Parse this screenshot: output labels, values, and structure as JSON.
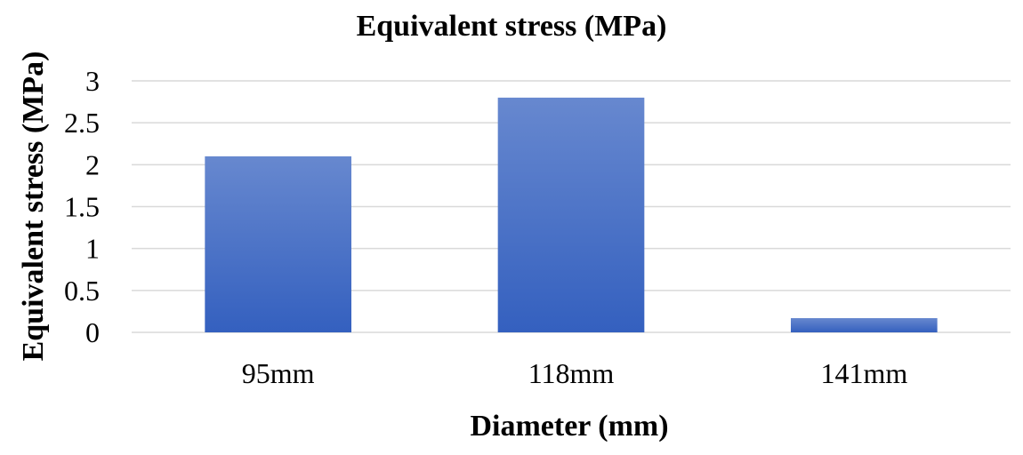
{
  "chart_data": {
    "type": "bar",
    "title": "Equivalent stress (MPa)",
    "xlabel": "Diameter (mm)",
    "ylabel": "Equivalent stress (MPa)",
    "categories": [
      "95mm",
      "118mm",
      "141mm"
    ],
    "values": [
      2.1,
      2.8,
      0.17
    ],
    "ylim": [
      0,
      3
    ],
    "yticks": [
      0,
      0.5,
      1,
      1.5,
      2,
      2.5,
      3
    ],
    "ytick_labels": [
      "0",
      "0.5",
      "1",
      "1.5",
      "2",
      "2.5",
      "3"
    ],
    "grid": "horizontal",
    "legend": "none",
    "bar_color_top": "#6788cf",
    "bar_color_bottom": "#3460bf"
  }
}
